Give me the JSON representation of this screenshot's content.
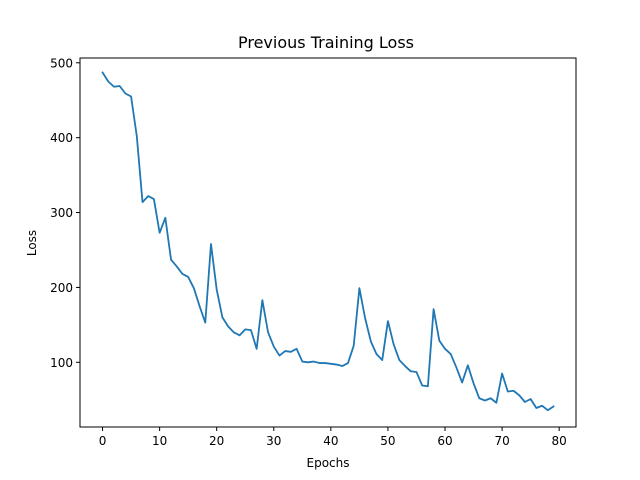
{
  "chart_data": {
    "type": "line",
    "title": "Previous Training Loss",
    "xlabel": "Epochs",
    "ylabel": "Loss",
    "xlim": [
      -3.95,
      82.95
    ],
    "ylim": [
      13.6,
      506.4
    ],
    "xticks": [
      0,
      10,
      20,
      30,
      40,
      50,
      60,
      70,
      80
    ],
    "yticks": [
      100,
      200,
      300,
      400,
      500
    ],
    "grid": false,
    "series": [
      {
        "color": "#1f77b4",
        "x": [
          0,
          1,
          2,
          3,
          4,
          5,
          6,
          7,
          8,
          9,
          10,
          11,
          12,
          13,
          14,
          15,
          16,
          17,
          18,
          19,
          20,
          21,
          22,
          23,
          24,
          25,
          26,
          27,
          28,
          29,
          30,
          31,
          32,
          33,
          34,
          35,
          36,
          37,
          38,
          39,
          40,
          41,
          42,
          43,
          44,
          45,
          46,
          47,
          48,
          49,
          50,
          51,
          52,
          53,
          54,
          55,
          56,
          57,
          58,
          59,
          60,
          61,
          62,
          63,
          64,
          65,
          66,
          67,
          68,
          69,
          70,
          71,
          72,
          73,
          74,
          75,
          76,
          77,
          78,
          79
        ],
        "values": [
          487,
          475,
          468,
          469,
          459,
          455,
          402,
          314,
          322,
          318,
          273,
          293,
          237,
          228,
          218,
          214,
          199,
          175,
          153,
          258,
          197,
          160,
          148,
          140,
          136,
          144,
          143,
          118,
          183,
          140,
          121,
          109,
          115,
          114,
          118,
          101,
          100,
          101,
          99,
          99,
          98,
          97,
          95,
          99,
          122,
          199,
          159,
          128,
          111,
          103,
          155,
          124,
          103,
          95,
          88,
          87,
          69,
          68,
          171,
          129,
          118,
          111,
          93,
          73,
          96,
          72,
          52,
          49,
          52,
          46,
          85,
          61,
          62,
          56,
          47,
          51,
          39,
          42,
          36,
          41
        ]
      }
    ]
  }
}
